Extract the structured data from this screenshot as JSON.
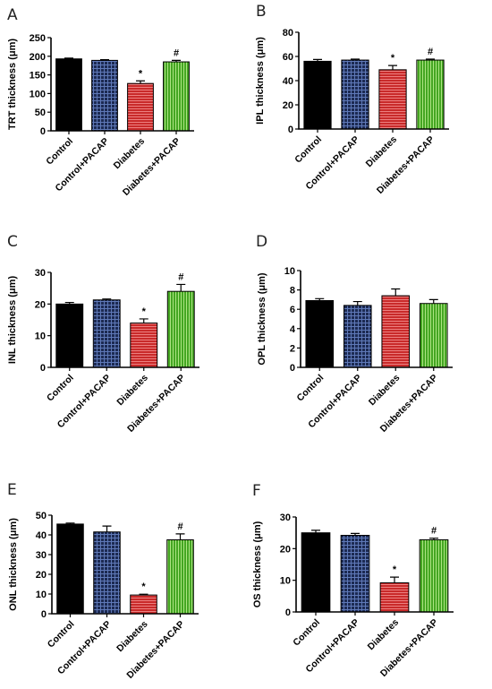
{
  "chart_data": [
    {
      "panel": "A",
      "type": "bar",
      "ylabel": "TRT thickness (μm)",
      "ylim": [
        0,
        250
      ],
      "yticks": [
        0,
        50,
        100,
        150,
        200,
        250
      ],
      "categories": [
        "Control",
        "Control+PACAP",
        "Diabetes",
        "Diabetes+PACAP"
      ],
      "values": [
        193,
        189,
        127,
        185
      ],
      "errors": [
        2,
        2,
        7,
        4
      ],
      "annotations": [
        "",
        "",
        "*",
        "#"
      ]
    },
    {
      "panel": "B",
      "type": "bar",
      "ylabel": "IPL thickness (μm)",
      "ylim": [
        0,
        80
      ],
      "yticks": [
        0,
        20,
        40,
        60,
        80
      ],
      "categories": [
        "Control",
        "Control+PACAP",
        "Diabetes",
        "Diabetes+PACAP"
      ],
      "values": [
        56,
        57,
        49,
        57
      ],
      "errors": [
        1.5,
        0.8,
        3.5,
        0.8
      ],
      "annotations": [
        "",
        "",
        "*",
        "#"
      ]
    },
    {
      "panel": "C",
      "type": "bar",
      "ylabel": "INL thickness (μm)",
      "ylim": [
        0,
        30
      ],
      "yticks": [
        0,
        10,
        20,
        30
      ],
      "categories": [
        "Control",
        "Control+PACAP",
        "Diabetes",
        "Diabetes+PACAP"
      ],
      "values": [
        20,
        21.3,
        14,
        24
      ],
      "errors": [
        0.5,
        0.3,
        1.3,
        2.2
      ],
      "annotations": [
        "",
        "",
        "*",
        "#"
      ]
    },
    {
      "panel": "D",
      "type": "bar",
      "ylabel": "OPL thickness (μm)",
      "ylim": [
        0,
        10
      ],
      "yticks": [
        0,
        2,
        4,
        6,
        8,
        10
      ],
      "categories": [
        "Control",
        "Control+PACAP",
        "Diabetes",
        "Diabetes+PACAP"
      ],
      "values": [
        6.9,
        6.4,
        7.4,
        6.6
      ],
      "errors": [
        0.2,
        0.4,
        0.7,
        0.4
      ],
      "annotations": [
        "",
        "",
        "",
        ""
      ]
    },
    {
      "panel": "E",
      "type": "bar",
      "ylabel": "ONL thickness (μm)",
      "ylim": [
        0,
        50
      ],
      "yticks": [
        0,
        10,
        20,
        30,
        40,
        50
      ],
      "categories": [
        "Control",
        "Control+PACAP",
        "Diabetes",
        "Diabetes+PACAP"
      ],
      "values": [
        45.5,
        41.5,
        9.5,
        37.5
      ],
      "errors": [
        0.5,
        3,
        0.4,
        3
      ],
      "annotations": [
        "",
        "",
        "*",
        "#"
      ]
    },
    {
      "panel": "F",
      "type": "bar",
      "ylabel": "OS thickness (μm)",
      "ylim": [
        0,
        30
      ],
      "yticks": [
        0,
        10,
        20,
        30
      ],
      "categories": [
        "Control",
        "Control+PACAP",
        "Diabetes",
        "Diabetes+PACAP"
      ],
      "values": [
        25,
        24.2,
        9.2,
        22.8
      ],
      "errors": [
        0.8,
        0.6,
        1.8,
        0.5
      ],
      "annotations": [
        "",
        "",
        "*",
        "#"
      ]
    }
  ],
  "bar_styles": [
    {
      "fill": "#000000",
      "pattern": "solid"
    },
    {
      "fill": "#1c2a52",
      "pattern": "grid",
      "line_color": "#5f79b8"
    },
    {
      "fill": "#c92a2a",
      "pattern": "hlines",
      "line_color": "#f08a8a"
    },
    {
      "fill": "#44a622",
      "pattern": "vlines",
      "line_color": "#b7ec8c"
    }
  ]
}
